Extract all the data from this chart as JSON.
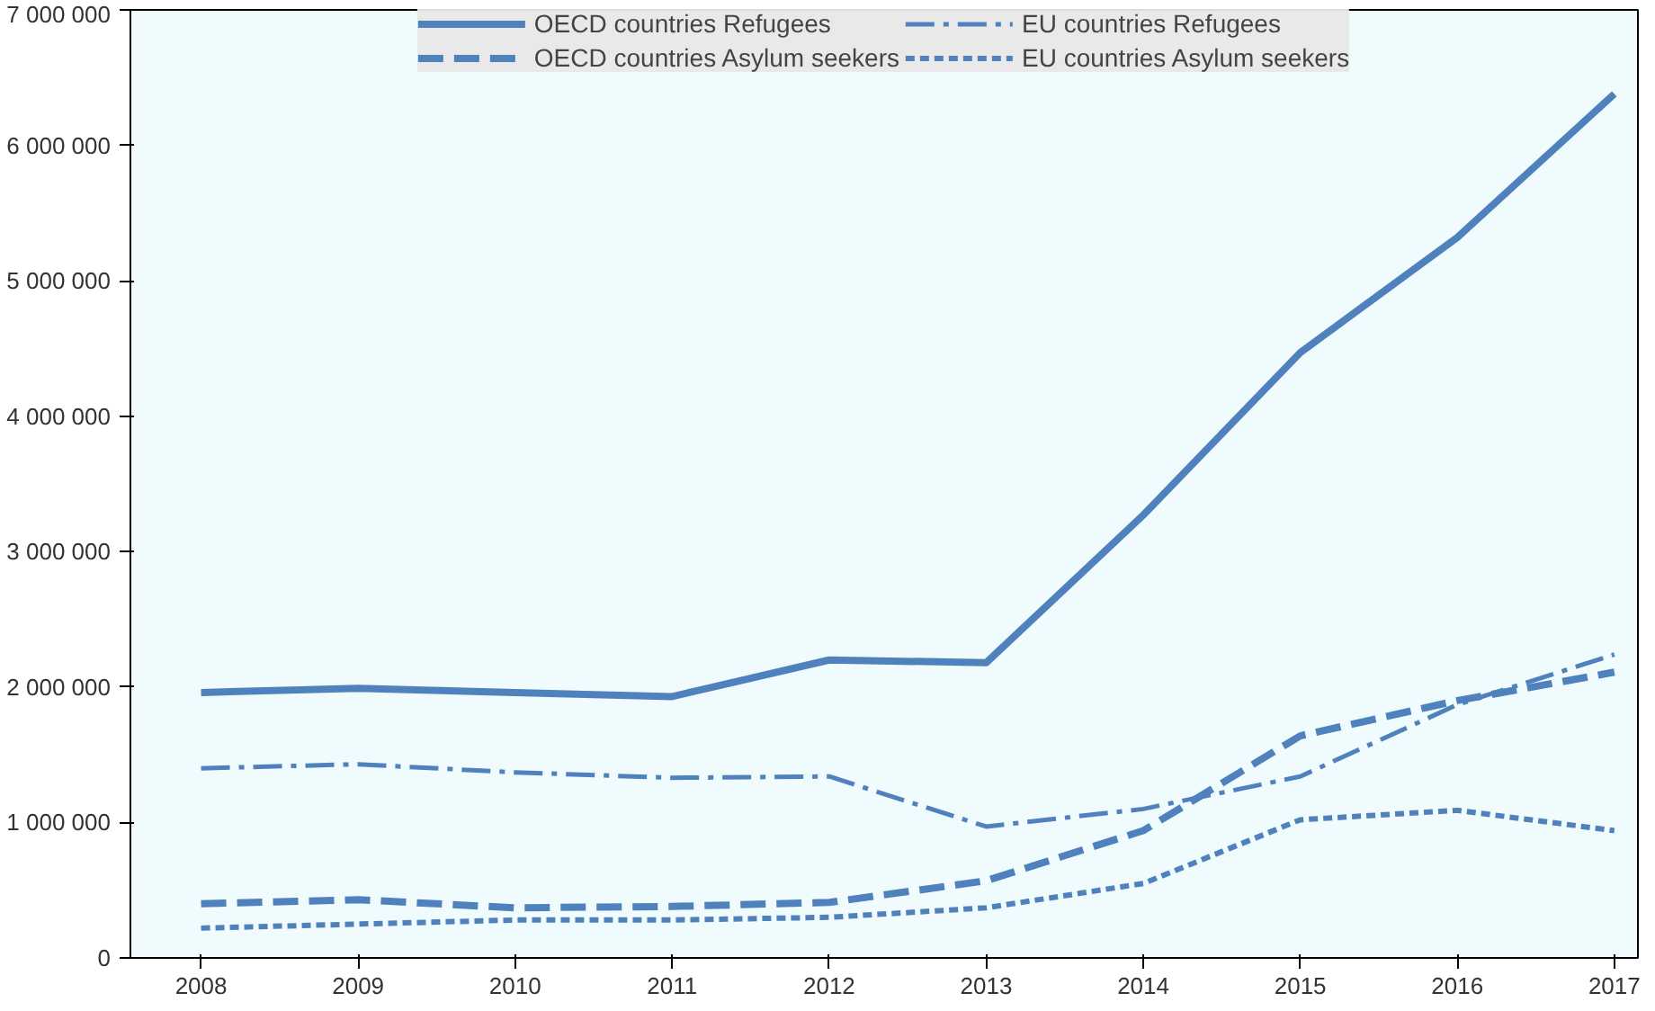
{
  "chart_data": {
    "type": "line",
    "x": [
      2008,
      2009,
      2010,
      2011,
      2012,
      2013,
      2014,
      2015,
      2016,
      2017
    ],
    "xlim": [
      2007.55,
      2017.15
    ],
    "xticks": [
      2008,
      2009,
      2010,
      2011,
      2012,
      2013,
      2014,
      2015,
      2016,
      2017
    ],
    "ylim": [
      0,
      7000000
    ],
    "yticks": [
      0,
      {
        "value": 1000000,
        "label": "1 000 000"
      },
      {
        "value": 2000000,
        "label": "2 000 000"
      },
      {
        "value": 3000000,
        "label": "3 000 000"
      },
      {
        "value": 4000000,
        "label": "4 000 000"
      },
      {
        "value": 5000000,
        "label": "5 000 000"
      },
      {
        "value": 6000000,
        "label": "6 000 000"
      },
      {
        "value": 7000000,
        "label": "7 000 000"
      }
    ],
    "grid": false,
    "legend": "top",
    "marker": "none",
    "series": [
      {
        "name": "OECD countries Refugees",
        "color": "#4f81bd",
        "line_style": "solid",
        "values": [
          1960000,
          1990000,
          1960000,
          1930000,
          2200000,
          2180000,
          3270000,
          4470000,
          5320000,
          6380000
        ]
      },
      {
        "name": "OECD countries Asylum seekers",
        "color": "#4f81bd",
        "line_style": "dashed",
        "values": [
          400000,
          430000,
          370000,
          380000,
          410000,
          570000,
          940000,
          1640000,
          1900000,
          2110000
        ]
      },
      {
        "name": "EU countries Refugees",
        "color": "#4f81bd",
        "line_style": "dashdot",
        "values": [
          1400000,
          1430000,
          1370000,
          1330000,
          1340000,
          970000,
          1100000,
          1340000,
          1870000,
          2240000
        ]
      },
      {
        "name": "EU countries Asylum seekers",
        "color": "#4f81bd",
        "line_style": "dotted",
        "values": [
          220000,
          250000,
          280000,
          280000,
          300000,
          370000,
          550000,
          1020000,
          1090000,
          940000
        ]
      }
    ]
  }
}
